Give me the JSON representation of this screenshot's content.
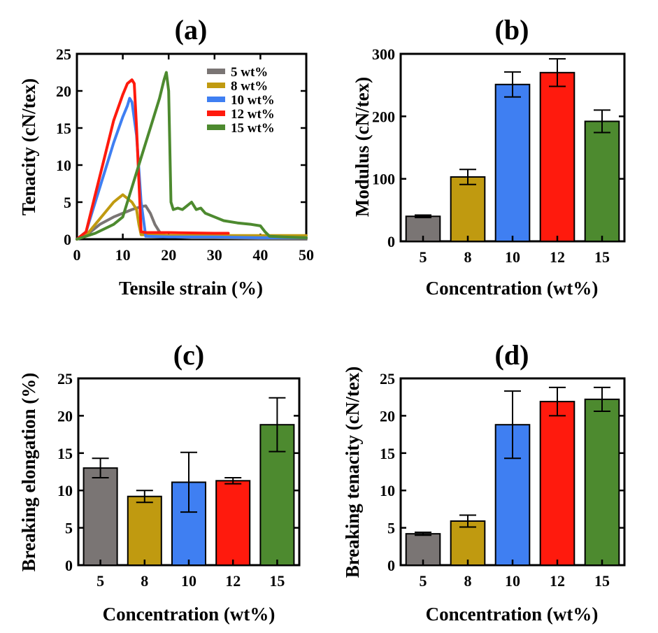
{
  "colors": {
    "5 wt%": "#7a7574",
    "8 wt%": "#c09a10",
    "10 wt%": "#3f7ff2",
    "12 wt%": "#ff1a0d",
    "15 wt%": "#4d8a2f"
  },
  "chart_data": [
    {
      "id": "a",
      "type": "line",
      "title": "(a)",
      "xlabel": "Tensile strain (%)",
      "ylabel": "Tenacity (cN/tex)",
      "xlim": [
        0,
        50
      ],
      "ylim": [
        0,
        25
      ],
      "xticks": [
        0,
        10,
        20,
        30,
        40,
        50
      ],
      "yticks": [
        0,
        5,
        10,
        15,
        20,
        25
      ],
      "legend_position": "top-right",
      "series": [
        {
          "name": "5 wt%",
          "x": [
            0,
            2,
            5,
            8,
            10,
            12,
            13,
            14,
            15,
            16,
            17,
            18,
            19,
            20,
            22,
            25,
            30,
            40,
            45,
            50
          ],
          "y": [
            0,
            0.5,
            2,
            3,
            3.5,
            4,
            4.2,
            4.4,
            4.5,
            3.5,
            2,
            1,
            0.5,
            0.4,
            0.3,
            0.2,
            0.2,
            0.1,
            0.1,
            0.1
          ]
        },
        {
          "name": "8 wt%",
          "x": [
            0,
            2,
            4,
            6,
            8,
            9,
            10,
            11,
            12,
            13,
            13.5,
            14,
            15,
            20,
            30,
            40,
            50
          ],
          "y": [
            0,
            0.5,
            2,
            3.5,
            5,
            5.5,
            6,
            5.5,
            5,
            4,
            2,
            0.6,
            0.6,
            0.5,
            0.5,
            0.5,
            0.5
          ]
        },
        {
          "name": "10 wt%",
          "x": [
            0,
            2,
            4,
            6,
            8,
            10,
            11,
            11.5,
            12,
            13,
            14,
            15,
            20,
            30,
            40,
            50
          ],
          "y": [
            0,
            1,
            5,
            9,
            13,
            16.5,
            18,
            19,
            18.5,
            14,
            5,
            0.4,
            0.3,
            0.3,
            0.2,
            0.2
          ]
        },
        {
          "name": "12 wt%",
          "x": [
            0,
            2,
            4,
            6,
            8,
            10,
            11,
            12,
            12.5,
            13,
            14,
            15,
            20,
            30,
            33
          ],
          "y": [
            0,
            1,
            6,
            11,
            16,
            19.5,
            21,
            21.5,
            21,
            15,
            1,
            0.9,
            0.9,
            0.8,
            0.8
          ]
        },
        {
          "name": "15 wt%",
          "x": [
            0,
            4,
            8,
            10,
            12,
            14,
            16,
            18,
            19,
            19.5,
            20,
            20.5,
            21,
            22,
            23,
            24,
            25,
            26,
            27,
            28,
            30,
            32,
            35,
            38,
            40,
            41,
            42,
            45,
            50
          ],
          "y": [
            0,
            0.8,
            2,
            3,
            7,
            11,
            15,
            19,
            21.5,
            22.5,
            20,
            5,
            4,
            4.2,
            4,
            4.5,
            5,
            4,
            4.2,
            3.5,
            3,
            2.5,
            2.2,
            2,
            1.8,
            1,
            0.4,
            0.3,
            0.2
          ]
        }
      ]
    },
    {
      "id": "b",
      "type": "bar",
      "title": "(b)",
      "xlabel": "Concentration (wt%)",
      "ylabel": "Modulus (cN/tex)",
      "categories": [
        "5",
        "8",
        "10",
        "12",
        "15"
      ],
      "values": [
        40,
        103,
        251,
        270,
        192
      ],
      "errors": [
        2,
        12,
        20,
        22,
        18
      ],
      "ylim": [
        0,
        300
      ],
      "yticks": [
        0,
        100,
        200,
        300
      ]
    },
    {
      "id": "c",
      "type": "bar",
      "title": "(c)",
      "xlabel": "Concentration (wt%)",
      "ylabel": "Breaking elongation (%)",
      "categories": [
        "5",
        "8",
        "10",
        "12",
        "15"
      ],
      "values": [
        13.0,
        9.2,
        11.1,
        11.3,
        18.8
      ],
      "errors": [
        1.3,
        0.8,
        4.0,
        0.4,
        3.6
      ],
      "ylim": [
        0,
        25
      ],
      "yticks": [
        0,
        5,
        10,
        15,
        20,
        25
      ]
    },
    {
      "id": "d",
      "type": "bar",
      "title": "(d)",
      "xlabel": "Concentration (wt%)",
      "ylabel": "Breaking tenacity (cN/tex)",
      "categories": [
        "5",
        "8",
        "10",
        "12",
        "15"
      ],
      "values": [
        4.2,
        5.9,
        18.8,
        21.9,
        22.2
      ],
      "errors": [
        0.2,
        0.8,
        4.5,
        1.9,
        1.6
      ],
      "ylim": [
        0,
        25
      ],
      "yticks": [
        0,
        5,
        10,
        15,
        20,
        25
      ]
    }
  ]
}
